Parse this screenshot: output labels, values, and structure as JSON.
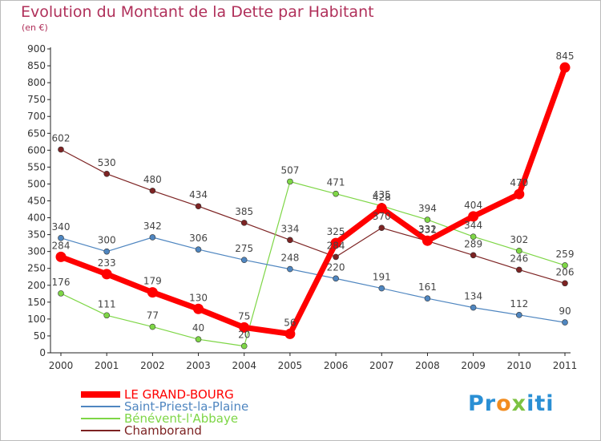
{
  "title": "Evolution du Montant de la Dette par Habitant",
  "unit": "(en €)",
  "logo_text": "Proxiti",
  "chart_data": {
    "type": "line",
    "title": "Evolution du Montant de la Dette par Habitant",
    "ylabel": "(en €)",
    "xlabel": "",
    "ylim": [
      0,
      900
    ],
    "yticks": [
      0,
      50,
      100,
      150,
      200,
      250,
      300,
      350,
      400,
      450,
      500,
      550,
      600,
      650,
      700,
      750,
      800,
      850,
      900
    ],
    "grid": false,
    "legend_position": "bottom-left",
    "categories": [
      "2000",
      "2001",
      "2002",
      "2003",
      "2004",
      "2005",
      "2006",
      "2007",
      "2008",
      "2009",
      "2010",
      "2011"
    ],
    "series": [
      {
        "name": "LE GRAND-BOURG",
        "color": "#ff0000",
        "values": [
          284,
          233,
          179,
          130,
          75,
          56,
          325,
          428,
          332,
          404,
          470,
          845
        ]
      },
      {
        "name": "Saint-Priest-la-Plaine",
        "color": "#4f86c0",
        "values": [
          340,
          300,
          342,
          306,
          275,
          248,
          220,
          191,
          161,
          134,
          112,
          90
        ]
      },
      {
        "name": "Bénévent-l'Abbaye",
        "color": "#7ed646",
        "values": [
          176,
          111,
          77,
          40,
          20,
          507,
          471,
          435,
          394,
          344,
          302,
          259
        ]
      },
      {
        "name": "Chamborand",
        "color": "#7d2323",
        "values": [
          602,
          530,
          480,
          434,
          385,
          334,
          284,
          370,
          331,
          289,
          246,
          206
        ]
      }
    ]
  }
}
